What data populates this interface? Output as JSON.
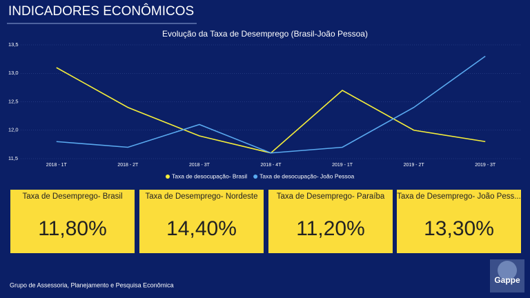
{
  "header": {
    "title": "INDICADORES ECONÔMICOS"
  },
  "chart_data": {
    "type": "line",
    "title": "Evolução da Taxa de Desemprego (Brasil-João Pessoa)",
    "categories": [
      "2018 - 1T",
      "2018 - 2T",
      "2018 - 3T",
      "2018 - 4T",
      "2019 - 1T",
      "2019 - 2T",
      "2019 - 3T"
    ],
    "series": [
      {
        "name": "Taxa de desocupação- Brasil",
        "color": "#f5ee3a",
        "values": [
          13.1,
          12.4,
          11.9,
          11.6,
          12.7,
          12.0,
          11.8
        ]
      },
      {
        "name": "Taxa de desocupação- João Pessoa",
        "color": "#5aaaf0",
        "values": [
          11.8,
          11.7,
          12.1,
          11.6,
          11.7,
          12.4,
          13.3
        ]
      }
    ],
    "ylim": [
      11.5,
      13.5
    ],
    "yticks": [
      {
        "value": 11.5,
        "label": "11,5"
      },
      {
        "value": 12.0,
        "label": "12,0"
      },
      {
        "value": 12.5,
        "label": "12,5"
      },
      {
        "value": 13.0,
        "label": "13,0"
      },
      {
        "value": 13.5,
        "label": "13,5"
      }
    ],
    "grid": true,
    "legend": "bottom"
  },
  "cards": [
    {
      "title": "Taxa de Desemprego- Brasil",
      "value": "11,80%"
    },
    {
      "title": "Taxa de Desemprego- Nordeste",
      "value": "14,40%"
    },
    {
      "title": "Taxa de Desemprego- Paraíba",
      "value": "11,20%"
    },
    {
      "title": "Taxa de Desemprego- João Pess...",
      "value": "13,30%"
    }
  ],
  "footer": {
    "text": "Grupo de Assessoria, Planejamento e Pesquisa Econômica",
    "logo": "Gappe"
  }
}
